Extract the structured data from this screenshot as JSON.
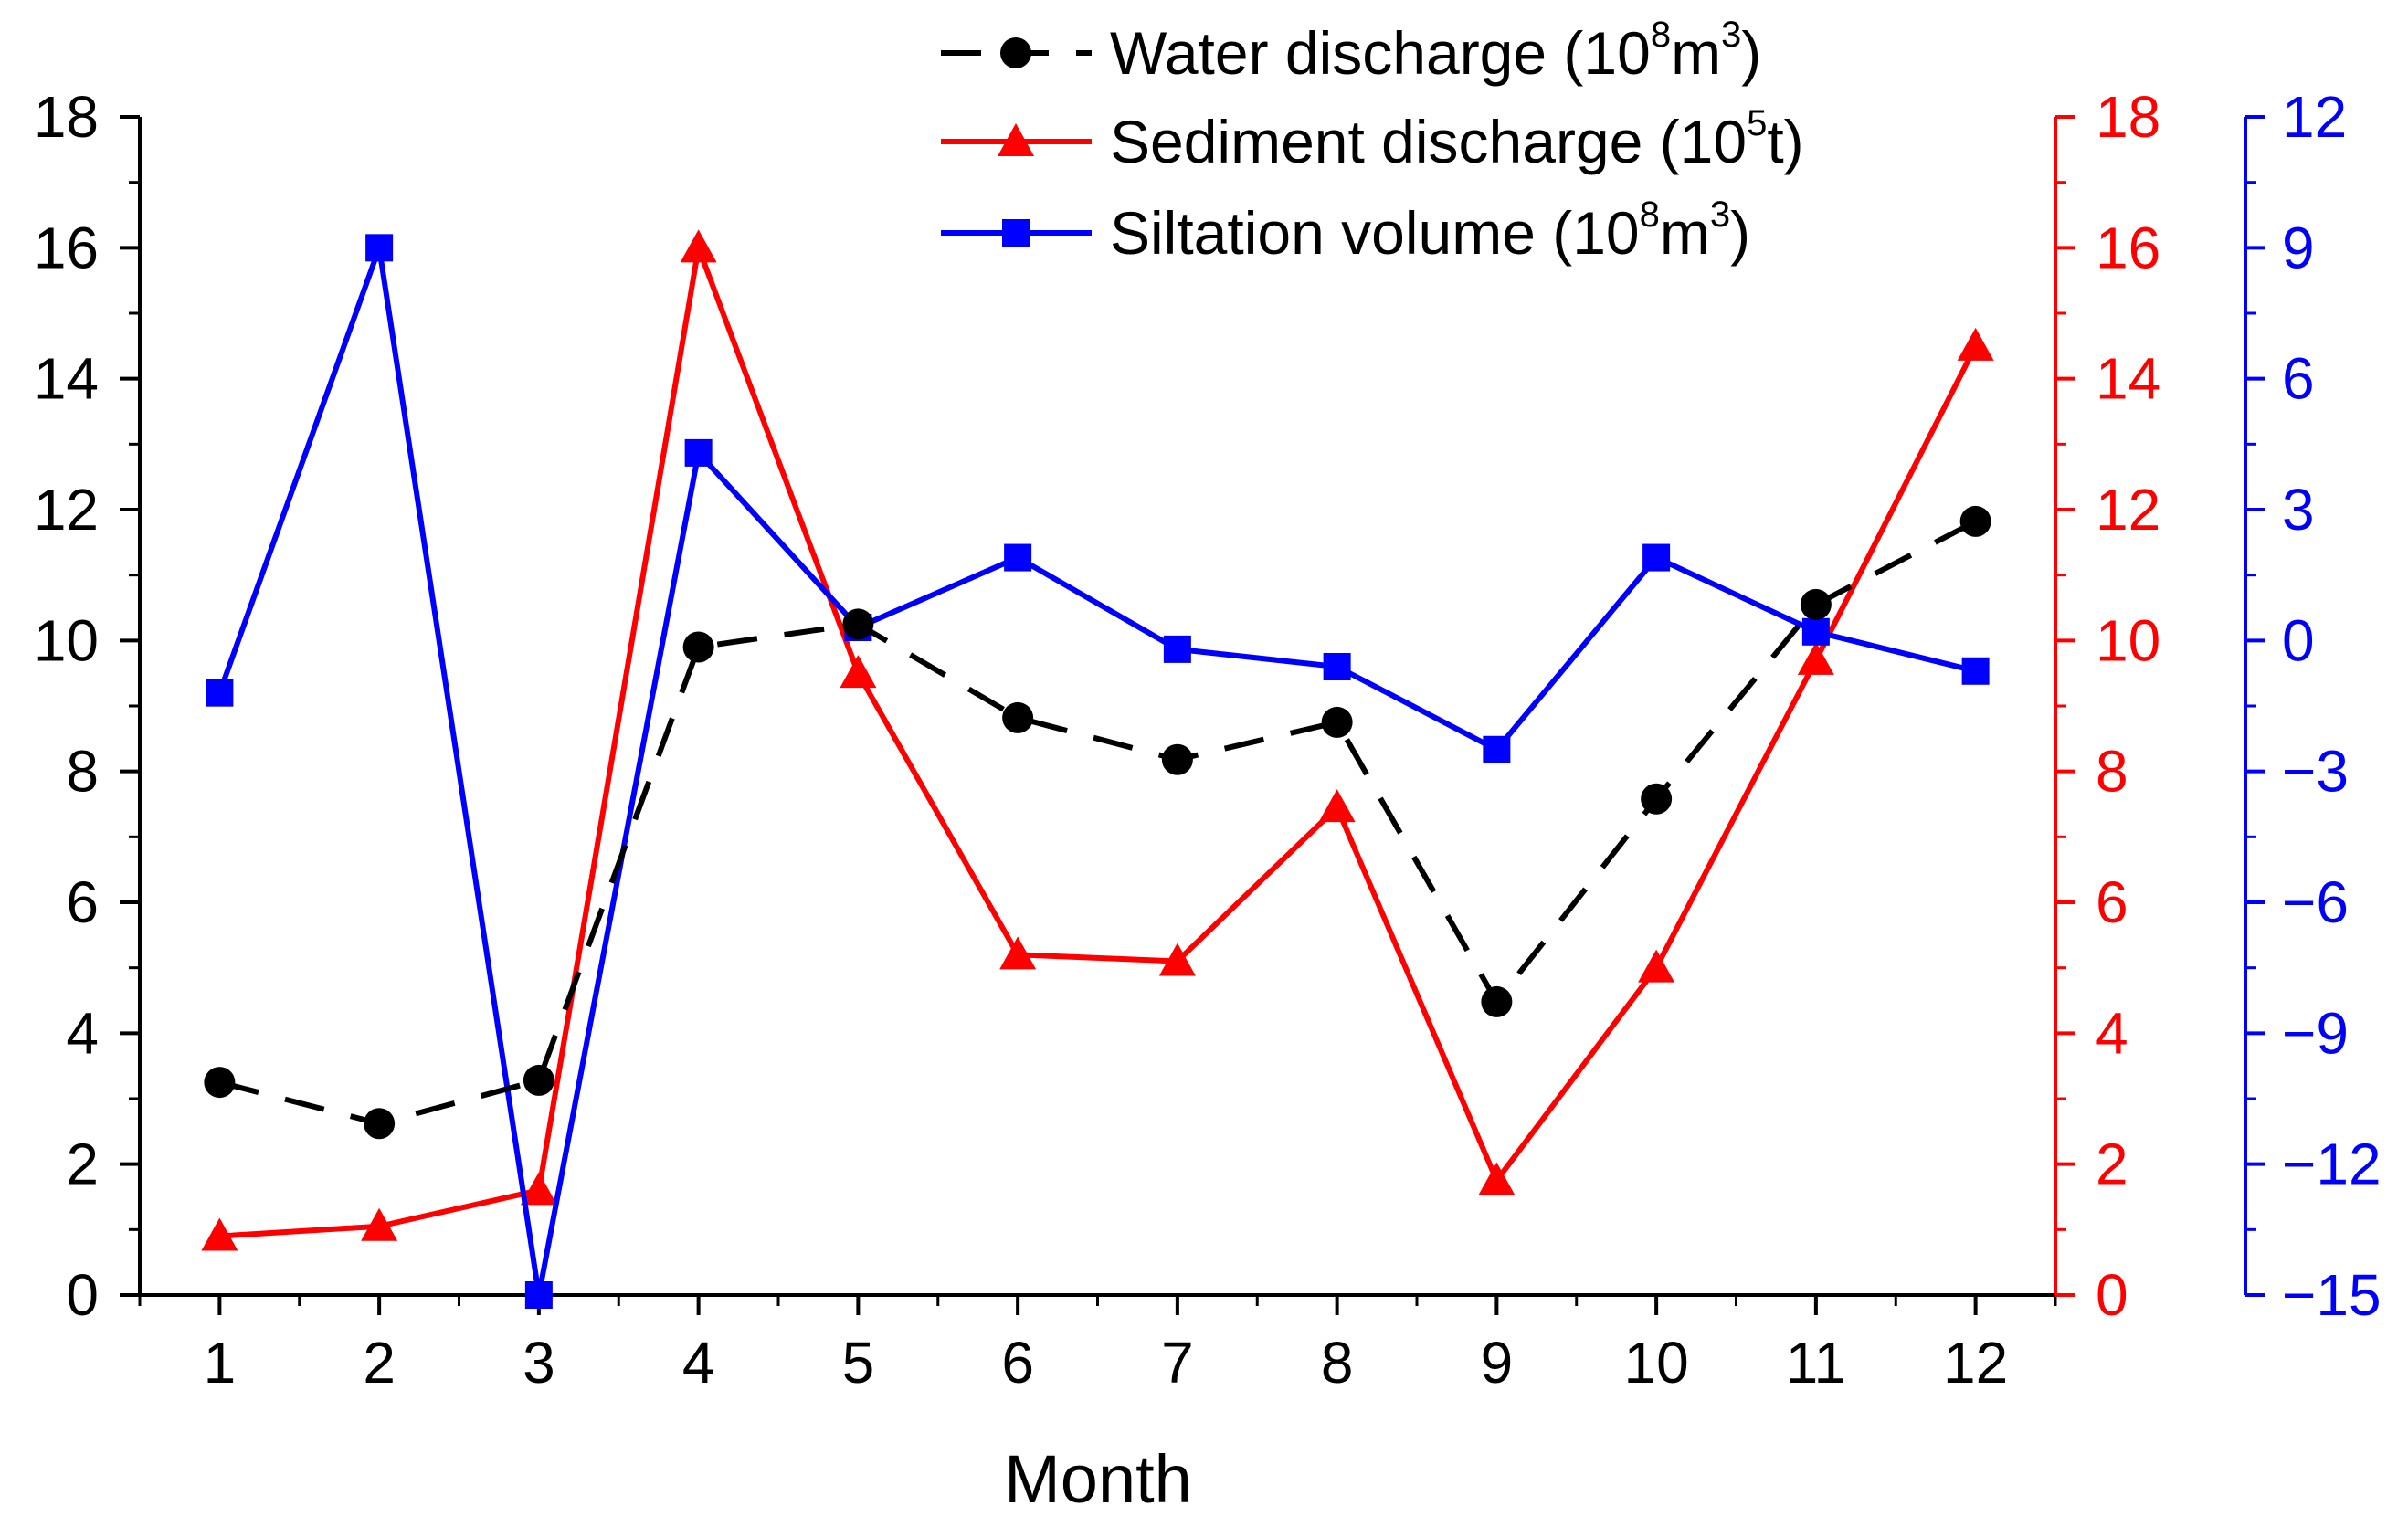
{
  "chart_data": {
    "type": "line",
    "xlabel": "Month",
    "categories": [
      "1",
      "2",
      "3",
      "4",
      "5",
      "6",
      "7",
      "8",
      "9",
      "10",
      "11",
      "12"
    ],
    "axes": {
      "left": {
        "ylim": [
          0,
          18
        ],
        "ticks": [
          "0",
          "2",
          "4",
          "6",
          "8",
          "10",
          "12",
          "14",
          "16",
          "18"
        ],
        "color": "#000000"
      },
      "right": {
        "ylim": [
          0,
          18
        ],
        "ticks": [
          "0",
          "2",
          "4",
          "6",
          "8",
          "10",
          "12",
          "14",
          "16",
          "18"
        ],
        "color": "#ff0000"
      },
      "right2": {
        "ylim": [
          -15,
          12
        ],
        "ticks": [
          "−15",
          "−12",
          "−9",
          "−6",
          "−3",
          "0",
          "3",
          "6",
          "9",
          "12"
        ],
        "tick_values": [
          -15,
          -12,
          -9,
          -6,
          -3,
          0,
          3,
          6,
          9,
          12
        ],
        "color": "#0000ff"
      }
    },
    "series": [
      {
        "key": "water",
        "name": "Water discharge (10",
        "sup1": "8",
        "mid": "m",
        "sup2": "3",
        "tail": ")",
        "axis": "left",
        "color": "#000000",
        "marker": "circle",
        "dash": true,
        "values": [
          3.25,
          2.62,
          3.28,
          9.9,
          10.25,
          8.82,
          8.18,
          8.75,
          4.48,
          7.58,
          10.55,
          11.82
        ]
      },
      {
        "key": "sediment",
        "name": "Sediment discharge (10",
        "sup1": "5",
        "mid": "t)",
        "sup2": "",
        "tail": "",
        "axis": "right",
        "color": "#ff0000",
        "marker": "triangle",
        "dash": false,
        "values": [
          0.9,
          1.05,
          1.6,
          16.0,
          9.5,
          5.2,
          5.1,
          7.45,
          1.75,
          5.0,
          9.7,
          14.5
        ]
      },
      {
        "key": "siltation",
        "name": "Siltation volume (10",
        "sup1": "8",
        "mid": "m",
        "sup2": "3",
        "tail": ")",
        "axis": "right2",
        "color": "#0000ff",
        "marker": "square",
        "dash": false,
        "values": [
          -1.2,
          9.0,
          -15.0,
          4.3,
          0.3,
          1.9,
          -0.2,
          -0.6,
          -2.5,
          1.9,
          0.2,
          -0.7
        ]
      }
    ]
  }
}
